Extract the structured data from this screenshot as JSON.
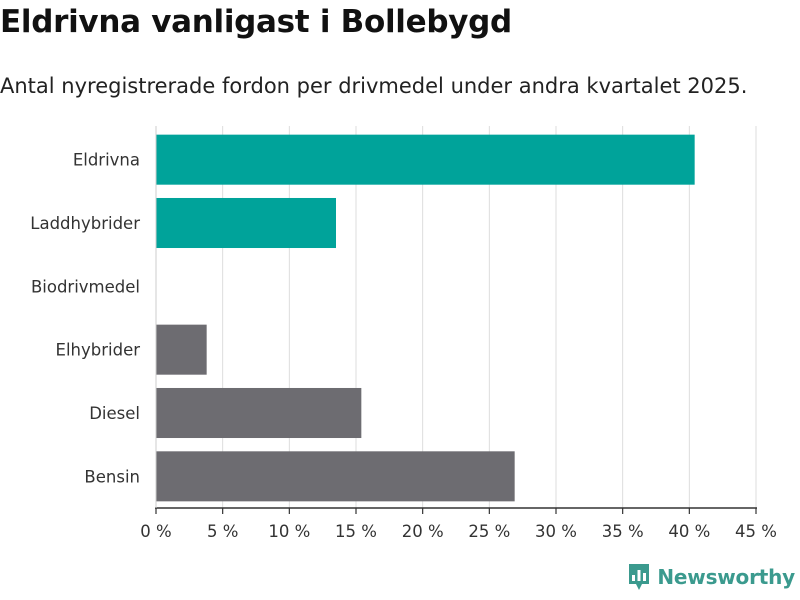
{
  "header": {
    "title": "Eldrivna vanligast i Bollebygd",
    "subtitle": "Antal nyregistrerade fordon per drivmedel under andra kvartalet 2025."
  },
  "brand": {
    "name": "Newsworthy",
    "icon": "bar-chart-pin-icon",
    "color": "#3b9a8e"
  },
  "colors": {
    "highlight": "#00a39a",
    "default": "#6d6c71",
    "gridline": "#dddddd",
    "axis": "#333333"
  },
  "chart_data": {
    "type": "bar",
    "orientation": "horizontal",
    "categories": [
      "Eldrivna",
      "Laddhybrider",
      "Biodrivmedel",
      "Elhybrider",
      "Diesel",
      "Bensin"
    ],
    "values": [
      40.4,
      13.5,
      0,
      3.8,
      15.4,
      26.9
    ],
    "highlight": [
      true,
      true,
      false,
      false,
      false,
      false
    ],
    "xlim": [
      0,
      45
    ],
    "xticks": [
      0,
      5,
      10,
      15,
      20,
      25,
      30,
      35,
      40,
      45
    ],
    "tick_suffix": " %",
    "grid": "vertical"
  }
}
